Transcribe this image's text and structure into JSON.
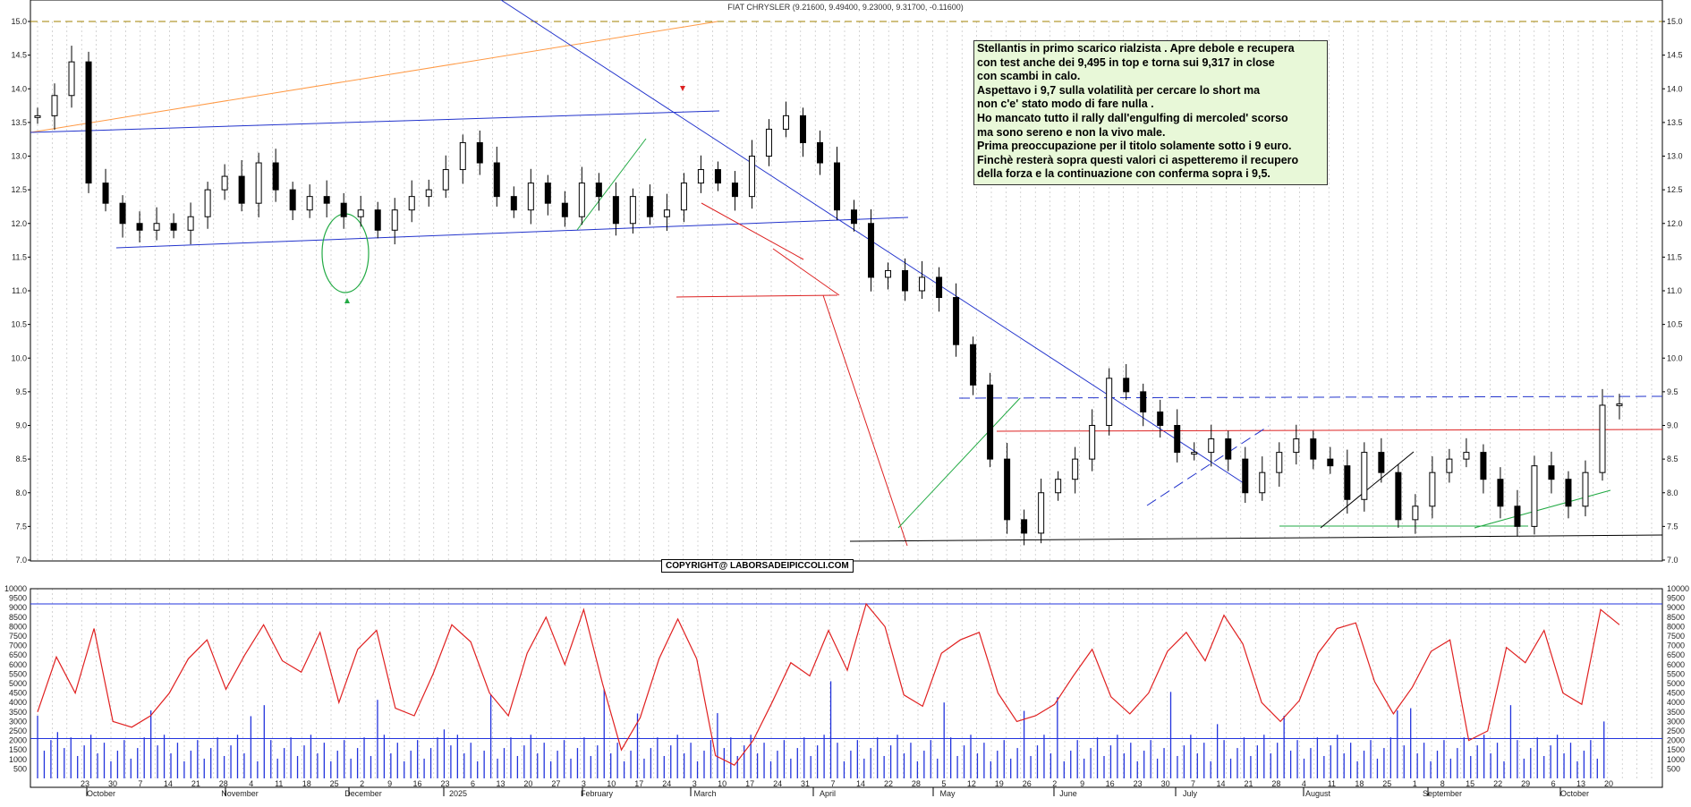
{
  "title": "FIAT CHRYSLER (9.21600, 9.49400, 9.23000, 9.31700, -0.11600)",
  "copyright": "COPYRIGHT@ LABORSADEIPICCOLI.COM",
  "note_lines": [
    "Stellantis in primo scarico rialzista . Apre debole e recupera",
    "con test anche dei 9,495 in top e torna sui 9,317 in close",
    "con scambi in calo.",
    "Aspettavo i 9,7 sulla volatilità per cercare lo short ma",
    "non c'e' stato modo di fare nulla .",
    "Ho mancato tutto il rally dall'engulfing di mercoled' scorso",
    "ma sono sereno e non la vivo male.",
    "Prima preoccupazione per il titolo solamente sotto i 9 euro.",
    "Finchè resterà sopra questi valori ci aspetteremo il recupero",
    "della forza e la continuazione con conferma sopra i 9,5."
  ],
  "colors": {
    "candle": "#000000",
    "grid": "#b8b8b8",
    "trendline_blue": "#2233cc",
    "trendline_red": "#dd2222",
    "trendline_green": "#22aa44",
    "oscillator": "#e02020",
    "volume": "#2233dd",
    "note_bg": "#e8f8d8",
    "dashed_top": "#a08000"
  },
  "chart_data": {
    "type": "candlestick",
    "price_axis": {
      "min": 7.0,
      "max": 15.0,
      "ticks": [
        "7.0",
        "7.5",
        "8.0",
        "8.5",
        "9.0",
        "9.5",
        "10.0",
        "10.5",
        "11.0",
        "11.5",
        "12.0",
        "12.5",
        "13.0",
        "13.5",
        "14.0",
        "14.5",
        "15.0"
      ]
    },
    "volume_axis": {
      "min": 0,
      "max": 10000,
      "ticks": [
        "500",
        "1000",
        "1500",
        "2000",
        "2500",
        "3000",
        "3500",
        "4000",
        "4500",
        "5000",
        "5500",
        "6000",
        "6500",
        "7000",
        "7500",
        "8000",
        "8500",
        "9000",
        "9500",
        "10000"
      ]
    },
    "day_labels": [
      "23",
      "30",
      "7",
      "14",
      "21",
      "28",
      "4",
      "11",
      "18",
      "25",
      "2",
      "9",
      "16",
      "23",
      "6",
      "13",
      "20",
      "27",
      "3",
      "10",
      "17",
      "24",
      "3",
      "10",
      "17",
      "24",
      "31",
      "7",
      "14",
      "22",
      "28",
      "5",
      "12",
      "19",
      "26",
      "2",
      "9",
      "16",
      "23",
      "30",
      "7",
      "14",
      "21",
      "28",
      "4",
      "11",
      "18",
      "25",
      "1",
      "8",
      "15",
      "22",
      "29",
      "6",
      "13",
      "20"
    ],
    "month_labels": [
      "October",
      "November",
      "December",
      "2025",
      "February",
      "March",
      "April",
      "May",
      "June",
      "July",
      "August",
      "September",
      "October"
    ],
    "close_series": [
      13.6,
      13.9,
      14.4,
      12.6,
      12.3,
      12.0,
      11.9,
      12.0,
      11.9,
      12.1,
      12.5,
      12.7,
      12.3,
      12.9,
      12.5,
      12.2,
      12.4,
      12.3,
      12.1,
      12.2,
      11.9,
      12.2,
      12.4,
      12.5,
      12.8,
      13.2,
      12.9,
      12.4,
      12.2,
      12.6,
      12.3,
      12.1,
      12.6,
      12.4,
      12.0,
      12.4,
      12.1,
      12.2,
      12.6,
      12.8,
      12.6,
      12.4,
      13.0,
      13.4,
      13.6,
      13.2,
      12.9,
      12.2,
      12.0,
      11.2,
      11.3,
      11.0,
      11.2,
      10.9,
      10.2,
      9.6,
      8.5,
      7.6,
      7.4,
      8.0,
      8.2,
      8.5,
      9.0,
      9.7,
      9.5,
      9.2,
      9.0,
      8.6,
      8.6,
      8.8,
      8.5,
      8.0,
      8.3,
      8.6,
      8.8,
      8.5,
      8.4,
      7.9,
      8.6,
      8.3,
      7.6,
      7.8,
      8.3,
      8.5,
      8.6,
      8.2,
      7.8,
      7.5,
      8.4,
      8.2,
      7.8,
      8.3,
      9.3,
      9.32
    ],
    "oscillator_series": [
      3500,
      6400,
      4500,
      7900,
      3000,
      2700,
      3300,
      4500,
      6300,
      7300,
      4700,
      6500,
      8100,
      6200,
      5600,
      7700,
      4000,
      6800,
      7800,
      3700,
      3300,
      5500,
      8100,
      7200,
      4500,
      3300,
      6600,
      8500,
      6000,
      8900,
      5000,
      1500,
      3200,
      6300,
      8400,
      6300,
      1200,
      700,
      2000,
      4000,
      6100,
      5400,
      7800,
      5700,
      9200,
      8000,
      4400,
      3800,
      6600,
      7300,
      7700,
      4500,
      3000,
      3300,
      3900,
      5400,
      6800,
      4300,
      3400,
      4500,
      6700,
      7700,
      6200,
      8600,
      7100,
      4000,
      3000,
      4100,
      6600,
      7900,
      8200,
      5100,
      3400,
      4800,
      6700,
      7300,
      2000,
      2500,
      6900,
      6100,
      7800,
      4500,
      3900,
      8900,
      8100
    ],
    "oscillator_levels": [
      2100,
      9200
    ],
    "annotations": {
      "horizontal_levels": [
        9.35,
        8.88,
        7.3,
        10.9
      ],
      "dashed_level": 15.0
    }
  }
}
